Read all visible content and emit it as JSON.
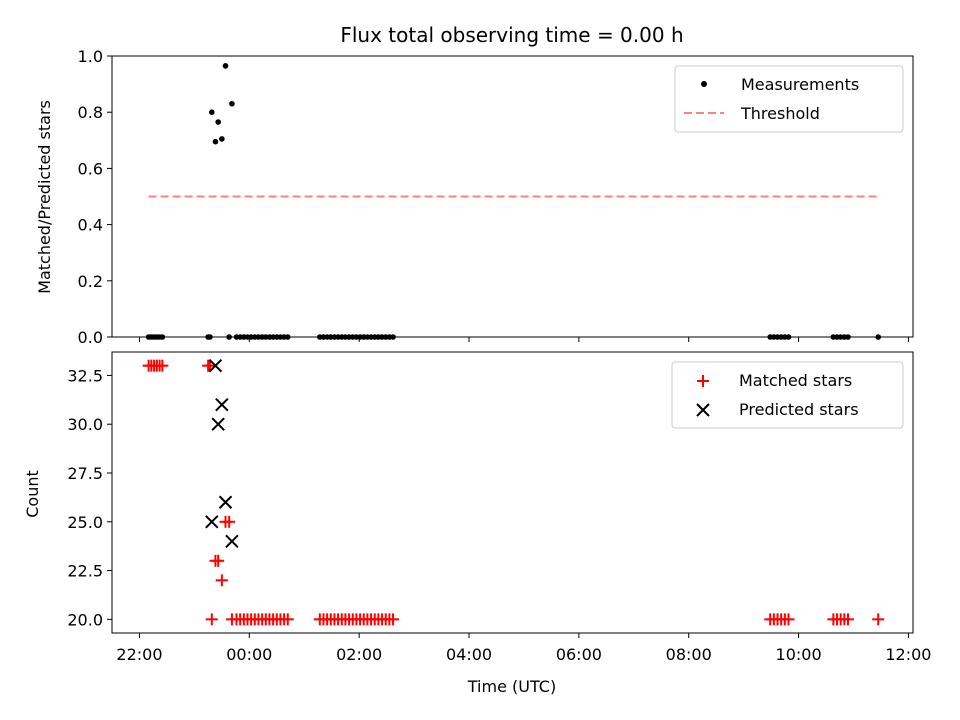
{
  "chart_data": [
    {
      "type": "scatter",
      "title": "Flux total observing time = 0.00 h",
      "xlabel": "",
      "ylabel": "Matched/Predicted stars",
      "x_range": [
        "21:30",
        "12:05"
      ],
      "ylim": [
        0,
        1.0
      ],
      "y_ticks": [
        "0.0",
        "0.2",
        "0.4",
        "0.6",
        "0.8",
        "1.0"
      ],
      "legend_position": "top-right",
      "grid": false,
      "series": [
        {
          "name": "Measurements",
          "marker": "dot",
          "color": "#000000",
          "points": [
            {
              "x": "22:10",
              "y": 0
            },
            {
              "x": "22:13",
              "y": 0
            },
            {
              "x": "22:16",
              "y": 0
            },
            {
              "x": "22:19",
              "y": 0
            },
            {
              "x": "22:22",
              "y": 0
            },
            {
              "x": "22:25",
              "y": 0
            },
            {
              "x": "23:15",
              "y": 0
            },
            {
              "x": "23:17",
              "y": 0
            },
            {
              "x": "23:19",
              "y": 0.8
            },
            {
              "x": "23:23",
              "y": 0.695
            },
            {
              "x": "23:26",
              "y": 0.765
            },
            {
              "x": "23:30",
              "y": 0.705
            },
            {
              "x": "23:34",
              "y": 0.965
            },
            {
              "x": "23:38",
              "y": 0
            },
            {
              "x": "23:41",
              "y": 0.83
            },
            {
              "x": "23:46",
              "y": 0
            },
            {
              "x": "23:50",
              "y": 0
            },
            {
              "x": "23:54",
              "y": 0
            },
            {
              "x": "23:58",
              "y": 0
            },
            {
              "x": "00:02",
              "y": 0
            },
            {
              "x": "00:06",
              "y": 0
            },
            {
              "x": "00:10",
              "y": 0
            },
            {
              "x": "00:14",
              "y": 0
            },
            {
              "x": "00:18",
              "y": 0
            },
            {
              "x": "00:22",
              "y": 0
            },
            {
              "x": "00:26",
              "y": 0
            },
            {
              "x": "00:30",
              "y": 0
            },
            {
              "x": "00:34",
              "y": 0
            },
            {
              "x": "00:38",
              "y": 0
            },
            {
              "x": "00:42",
              "y": 0
            },
            {
              "x": "01:17",
              "y": 0
            },
            {
              "x": "01:21",
              "y": 0
            },
            {
              "x": "01:25",
              "y": 0
            },
            {
              "x": "01:29",
              "y": 0
            },
            {
              "x": "01:33",
              "y": 0
            },
            {
              "x": "01:37",
              "y": 0
            },
            {
              "x": "01:41",
              "y": 0
            },
            {
              "x": "01:45",
              "y": 0
            },
            {
              "x": "01:49",
              "y": 0
            },
            {
              "x": "01:53",
              "y": 0
            },
            {
              "x": "01:57",
              "y": 0
            },
            {
              "x": "02:01",
              "y": 0
            },
            {
              "x": "02:05",
              "y": 0
            },
            {
              "x": "02:09",
              "y": 0
            },
            {
              "x": "02:13",
              "y": 0
            },
            {
              "x": "02:17",
              "y": 0
            },
            {
              "x": "02:21",
              "y": 0
            },
            {
              "x": "02:25",
              "y": 0
            },
            {
              "x": "02:29",
              "y": 0
            },
            {
              "x": "02:33",
              "y": 0
            },
            {
              "x": "02:37",
              "y": 0
            },
            {
              "x": "09:29",
              "y": 0
            },
            {
              "x": "09:33",
              "y": 0
            },
            {
              "x": "09:37",
              "y": 0
            },
            {
              "x": "09:41",
              "y": 0
            },
            {
              "x": "09:45",
              "y": 0
            },
            {
              "x": "09:49",
              "y": 0
            },
            {
              "x": "10:38",
              "y": 0
            },
            {
              "x": "10:42",
              "y": 0
            },
            {
              "x": "10:46",
              "y": 0
            },
            {
              "x": "10:50",
              "y": 0
            },
            {
              "x": "10:54",
              "y": 0
            },
            {
              "x": "11:27",
              "y": 0
            }
          ]
        },
        {
          "name": "Threshold",
          "marker": "dashed-line",
          "color": "#ff8080",
          "points": [
            {
              "x": "22:10",
              "y": 0.5
            },
            {
              "x": "11:27",
              "y": 0.5
            }
          ]
        }
      ]
    },
    {
      "type": "scatter",
      "title": "",
      "xlabel": "Time (UTC)",
      "ylabel": "Count",
      "x_range": [
        "21:30",
        "12:05"
      ],
      "ylim": [
        19.3,
        33.7
      ],
      "y_ticks": [
        "20.0",
        "22.5",
        "25.0",
        "27.5",
        "30.0",
        "32.5"
      ],
      "x_ticks": [
        "22:00",
        "00:00",
        "02:00",
        "04:00",
        "06:00",
        "08:00",
        "10:00",
        "12:00"
      ],
      "legend_position": "top-right",
      "grid": false,
      "series": [
        {
          "name": "Matched stars",
          "marker": "plus",
          "color": "#ff0000",
          "points": [
            {
              "x": "22:10",
              "y": 33
            },
            {
              "x": "22:13",
              "y": 33
            },
            {
              "x": "22:16",
              "y": 33
            },
            {
              "x": "22:19",
              "y": 33
            },
            {
              "x": "22:22",
              "y": 33
            },
            {
              "x": "22:25",
              "y": 33
            },
            {
              "x": "23:15",
              "y": 33
            },
            {
              "x": "23:17",
              "y": 33
            },
            {
              "x": "23:19",
              "y": 20
            },
            {
              "x": "23:23",
              "y": 23
            },
            {
              "x": "23:26",
              "y": 23
            },
            {
              "x": "23:30",
              "y": 22
            },
            {
              "x": "23:34",
              "y": 25
            },
            {
              "x": "23:38",
              "y": 25
            },
            {
              "x": "23:41",
              "y": 20
            },
            {
              "x": "23:46",
              "y": 20
            },
            {
              "x": "23:50",
              "y": 20
            },
            {
              "x": "23:54",
              "y": 20
            },
            {
              "x": "23:58",
              "y": 20
            },
            {
              "x": "00:02",
              "y": 20
            },
            {
              "x": "00:06",
              "y": 20
            },
            {
              "x": "00:10",
              "y": 20
            },
            {
              "x": "00:14",
              "y": 20
            },
            {
              "x": "00:18",
              "y": 20
            },
            {
              "x": "00:22",
              "y": 20
            },
            {
              "x": "00:26",
              "y": 20
            },
            {
              "x": "00:30",
              "y": 20
            },
            {
              "x": "00:34",
              "y": 20
            },
            {
              "x": "00:38",
              "y": 20
            },
            {
              "x": "00:42",
              "y": 20
            },
            {
              "x": "01:17",
              "y": 20
            },
            {
              "x": "01:21",
              "y": 20
            },
            {
              "x": "01:25",
              "y": 20
            },
            {
              "x": "01:29",
              "y": 20
            },
            {
              "x": "01:33",
              "y": 20
            },
            {
              "x": "01:37",
              "y": 20
            },
            {
              "x": "01:41",
              "y": 20
            },
            {
              "x": "01:45",
              "y": 20
            },
            {
              "x": "01:49",
              "y": 20
            },
            {
              "x": "01:53",
              "y": 20
            },
            {
              "x": "01:57",
              "y": 20
            },
            {
              "x": "02:01",
              "y": 20
            },
            {
              "x": "02:05",
              "y": 20
            },
            {
              "x": "02:09",
              "y": 20
            },
            {
              "x": "02:13",
              "y": 20
            },
            {
              "x": "02:17",
              "y": 20
            },
            {
              "x": "02:21",
              "y": 20
            },
            {
              "x": "02:25",
              "y": 20
            },
            {
              "x": "02:29",
              "y": 20
            },
            {
              "x": "02:33",
              "y": 20
            },
            {
              "x": "02:37",
              "y": 20
            },
            {
              "x": "09:29",
              "y": 20
            },
            {
              "x": "09:33",
              "y": 20
            },
            {
              "x": "09:37",
              "y": 20
            },
            {
              "x": "09:41",
              "y": 20
            },
            {
              "x": "09:45",
              "y": 20
            },
            {
              "x": "09:49",
              "y": 20
            },
            {
              "x": "10:38",
              "y": 20
            },
            {
              "x": "10:42",
              "y": 20
            },
            {
              "x": "10:46",
              "y": 20
            },
            {
              "x": "10:50",
              "y": 20
            },
            {
              "x": "10:54",
              "y": 20
            },
            {
              "x": "11:27",
              "y": 20
            }
          ]
        },
        {
          "name": "Predicted stars",
          "marker": "x",
          "color": "#000000",
          "points": [
            {
              "x": "23:19",
              "y": 25
            },
            {
              "x": "23:23",
              "y": 33
            },
            {
              "x": "23:26",
              "y": 30
            },
            {
              "x": "23:30",
              "y": 31
            },
            {
              "x": "23:34",
              "y": 26
            },
            {
              "x": "23:41",
              "y": 24
            }
          ]
        }
      ]
    }
  ]
}
